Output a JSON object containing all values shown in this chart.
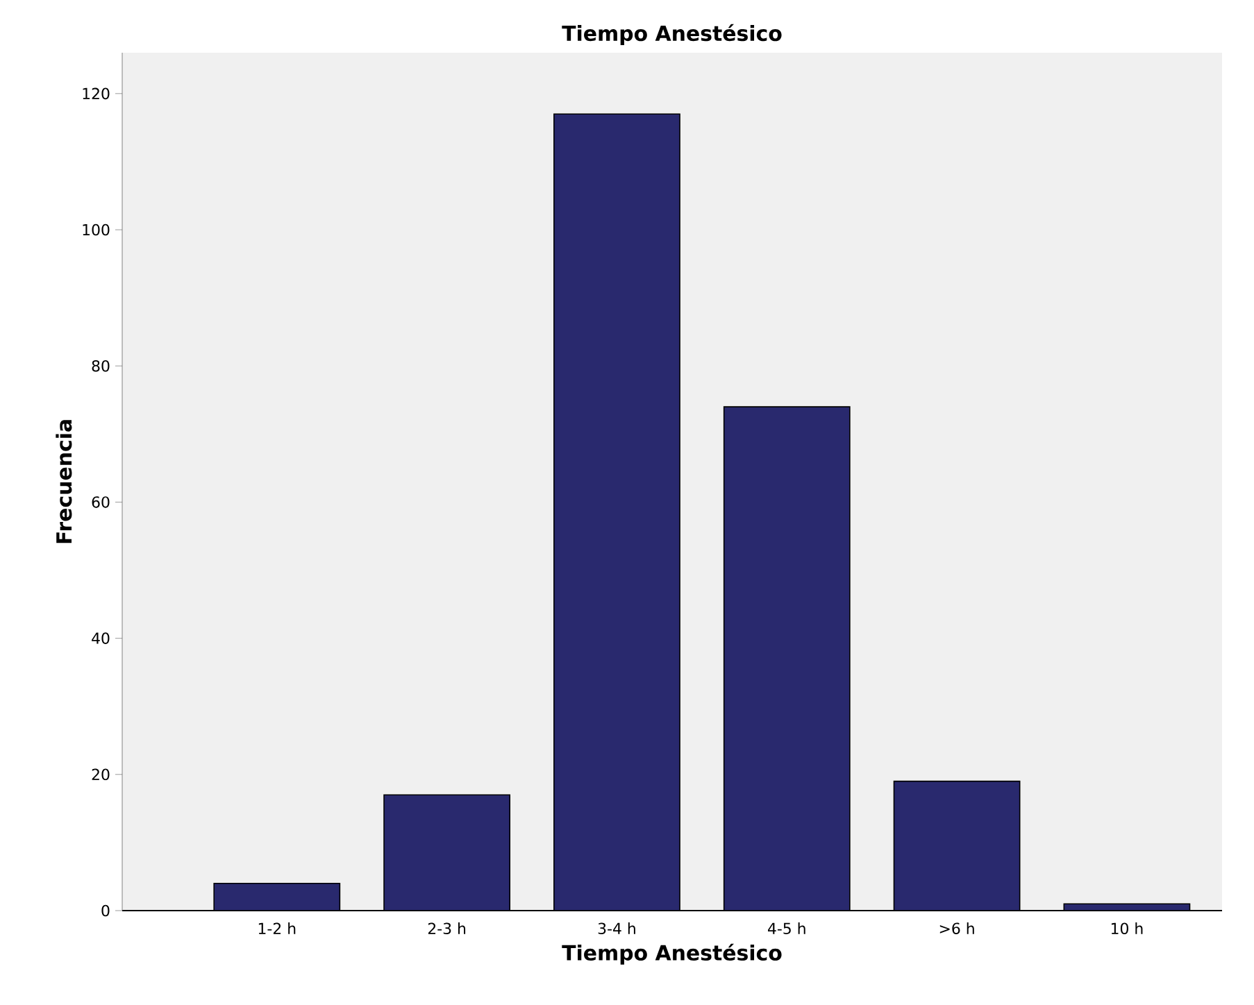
{
  "chart_data": {
    "type": "bar",
    "title": "Tiempo Anestésico",
    "xlabel": "Tiempo Anestésico",
    "ylabel": "Frecuencia",
    "categories": [
      "1-2 h",
      "2-3 h",
      "3-4 h",
      "4-5 h",
      ">6 h",
      "10 h"
    ],
    "values": [
      4,
      17,
      117,
      74,
      19,
      1
    ],
    "color": "#29296e",
    "ylim": [
      0,
      126
    ],
    "yticks": [
      0,
      20,
      40,
      60,
      80,
      100,
      120
    ],
    "grid": false
  }
}
